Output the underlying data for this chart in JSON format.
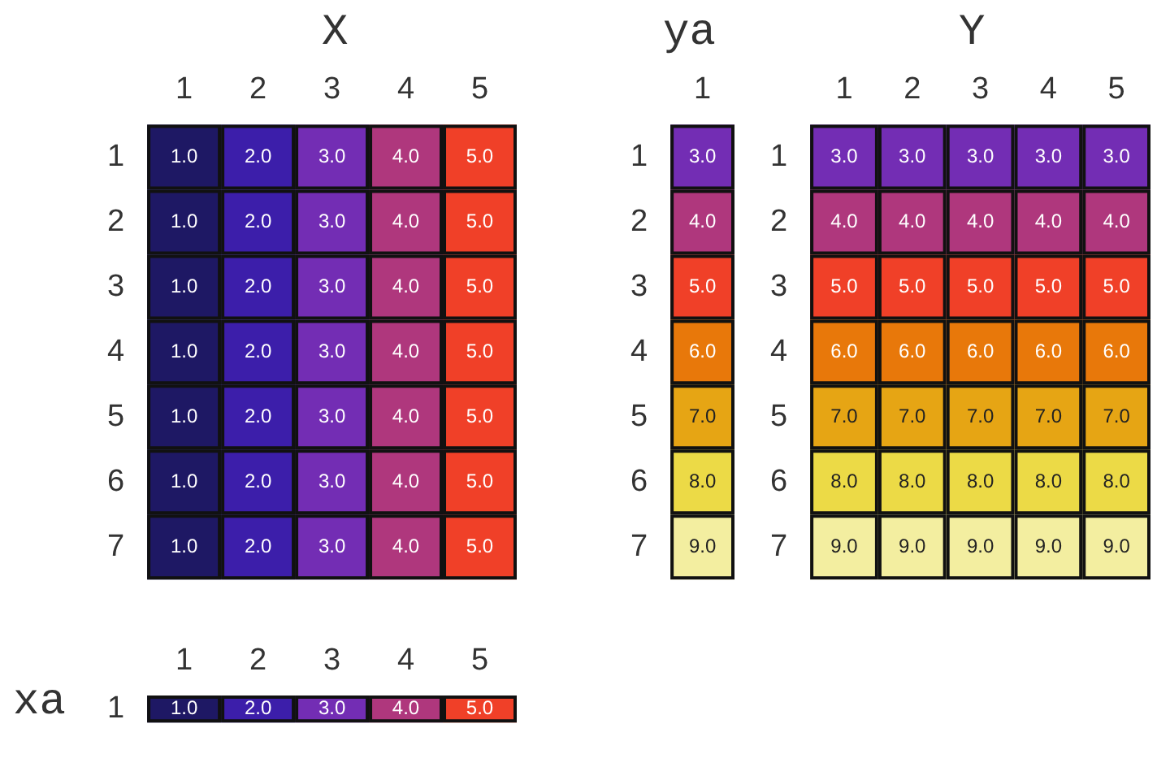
{
  "chart_data": [
    {
      "type": "heatmap",
      "title": "X",
      "categories": [
        "1",
        "2",
        "3",
        "4",
        "5"
      ],
      "y_categories": [
        "1",
        "2",
        "3",
        "4",
        "5",
        "6",
        "7"
      ],
      "cells": [
        [
          1,
          2,
          3,
          4,
          5
        ],
        [
          1,
          2,
          3,
          4,
          5
        ],
        [
          1,
          2,
          3,
          4,
          5
        ],
        [
          1,
          2,
          3,
          4,
          5
        ],
        [
          1,
          2,
          3,
          4,
          5
        ],
        [
          1,
          2,
          3,
          4,
          5
        ],
        [
          1,
          2,
          3,
          4,
          5
        ]
      ],
      "cell_labels": [
        [
          "1.0",
          "2.0",
          "3.0",
          "4.0",
          "5.0"
        ],
        [
          "1.0",
          "2.0",
          "3.0",
          "4.0",
          "5.0"
        ],
        [
          "1.0",
          "2.0",
          "3.0",
          "4.0",
          "5.0"
        ],
        [
          "1.0",
          "2.0",
          "3.0",
          "4.0",
          "5.0"
        ],
        [
          "1.0",
          "2.0",
          "3.0",
          "4.0",
          "5.0"
        ],
        [
          "1.0",
          "2.0",
          "3.0",
          "4.0",
          "5.0"
        ],
        [
          "1.0",
          "2.0",
          "3.0",
          "4.0",
          "5.0"
        ]
      ]
    },
    {
      "type": "heatmap",
      "title": "ya",
      "categories": [
        "1"
      ],
      "y_categories": [
        "1",
        "2",
        "3",
        "4",
        "5",
        "6",
        "7"
      ],
      "cells": [
        [
          3
        ],
        [
          4
        ],
        [
          5
        ],
        [
          6
        ],
        [
          7
        ],
        [
          8
        ],
        [
          9
        ]
      ],
      "cell_labels": [
        [
          "3.0"
        ],
        [
          "4.0"
        ],
        [
          "5.0"
        ],
        [
          "6.0"
        ],
        [
          "7.0"
        ],
        [
          "8.0"
        ],
        [
          "9.0"
        ]
      ]
    },
    {
      "type": "heatmap",
      "title": "Y",
      "categories": [
        "1",
        "2",
        "3",
        "4",
        "5"
      ],
      "y_categories": [
        "1",
        "2",
        "3",
        "4",
        "5",
        "6",
        "7"
      ],
      "cells": [
        [
          3,
          3,
          3,
          3,
          3
        ],
        [
          4,
          4,
          4,
          4,
          4
        ],
        [
          5,
          5,
          5,
          5,
          5
        ],
        [
          6,
          6,
          6,
          6,
          6
        ],
        [
          7,
          7,
          7,
          7,
          7
        ],
        [
          8,
          8,
          8,
          8,
          8
        ],
        [
          9,
          9,
          9,
          9,
          9
        ]
      ],
      "cell_labels": [
        [
          "3.0",
          "3.0",
          "3.0",
          "3.0",
          "3.0"
        ],
        [
          "4.0",
          "4.0",
          "4.0",
          "4.0",
          "4.0"
        ],
        [
          "5.0",
          "5.0",
          "5.0",
          "5.0",
          "5.0"
        ],
        [
          "6.0",
          "6.0",
          "6.0",
          "6.0",
          "6.0"
        ],
        [
          "7.0",
          "7.0",
          "7.0",
          "7.0",
          "7.0"
        ],
        [
          "8.0",
          "8.0",
          "8.0",
          "8.0",
          "8.0"
        ],
        [
          "9.0",
          "9.0",
          "9.0",
          "9.0",
          "9.0"
        ]
      ]
    },
    {
      "type": "heatmap",
      "title": "xa",
      "categories": [
        "1",
        "2",
        "3",
        "4",
        "5"
      ],
      "y_categories": [
        "1"
      ],
      "cells": [
        [
          1,
          2,
          3,
          4,
          5
        ]
      ],
      "cell_labels": [
        [
          "1.0",
          "2.0",
          "3.0",
          "4.0",
          "5.0"
        ]
      ]
    }
  ]
}
